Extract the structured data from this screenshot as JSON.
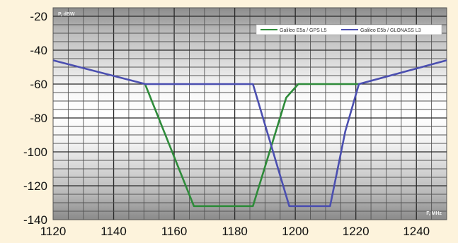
{
  "chart_data": {
    "type": "line",
    "title": "",
    "xlabel": "F, MHz",
    "ylabel": "P, dBW",
    "xlim": [
      1120,
      1250
    ],
    "ylim": [
      -140,
      -15
    ],
    "x_ticks": [
      1120,
      1140,
      1160,
      1180,
      1200,
      1220,
      1240
    ],
    "y_ticks": [
      -20,
      -40,
      -60,
      -80,
      -100,
      -120,
      -140
    ],
    "grid": true,
    "legend_position": "top-right",
    "series": [
      {
        "name": "Galileo E5a / GPS L5",
        "color": "#2e8b3a",
        "x": [
          1150.5,
          1166.5,
          1186,
          1197,
          1201,
          1221
        ],
        "y": [
          -60.5,
          -132,
          -132,
          -68,
          -60,
          -60
        ]
      },
      {
        "name": "Galileo E5b / GLONASS L3",
        "color": "#4b4fb0",
        "x": [
          1120,
          1150.5,
          1186,
          1198,
          1211.5,
          1216.5,
          1221,
          1250
        ],
        "y": [
          -46,
          -60,
          -60,
          -132,
          -132,
          -88,
          -60,
          -46
        ]
      }
    ]
  }
}
